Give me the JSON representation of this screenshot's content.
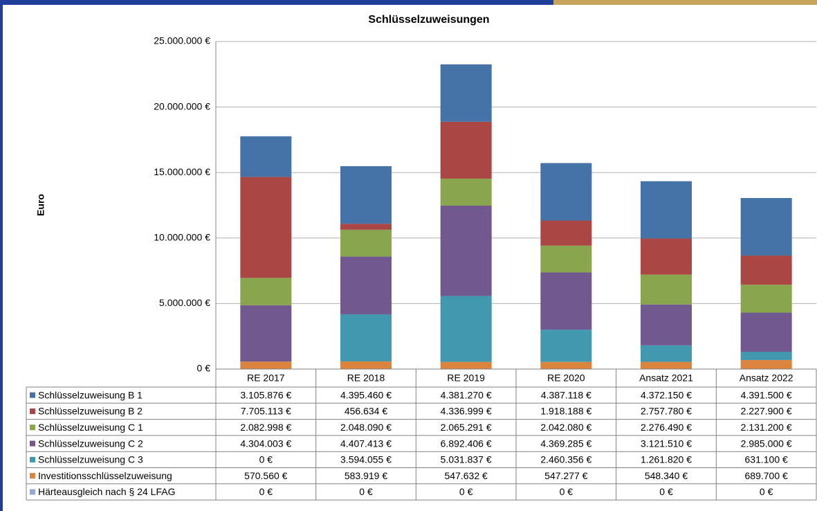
{
  "chart_data": {
    "type": "stacked-bar",
    "title": "Schlüsselzuweisungen",
    "y_label": "Euro",
    "categories": [
      "RE 2017",
      "RE 2018",
      "RE 2019",
      "RE 2020",
      "Ansatz 2021",
      "Ansatz 2022"
    ],
    "ylim": [
      0,
      25000000
    ],
    "yticks": [
      {
        "value": 0,
        "label": "0 €"
      },
      {
        "value": 5000000,
        "label": "5.000.000 €"
      },
      {
        "value": 10000000,
        "label": "10.000.000 €"
      },
      {
        "value": 15000000,
        "label": "15.000.000 €"
      },
      {
        "value": 20000000,
        "label": "20.000.000 €"
      },
      {
        "value": 25000000,
        "label": "25.000.000 €"
      }
    ],
    "grid": true,
    "series": [
      {
        "name": "Schlüsselzuweisung B 1",
        "color": "#4572a7",
        "values": [
          3105876,
          4395460,
          4381270,
          4387118,
          4372150,
          4391500
        ],
        "value_labels": [
          "3.105.876 €",
          "4.395.460 €",
          "4.381.270 €",
          "4.387.118 €",
          "4.372.150 €",
          "4.391.500 €"
        ]
      },
      {
        "name": "Schlüsselzuweisung B 2",
        "color": "#aa4643",
        "values": [
          7705113,
          456634,
          4336999,
          1918188,
          2757780,
          2227900
        ],
        "value_labels": [
          "7.705.113 €",
          "456.634 €",
          "4.336.999 €",
          "1.918.188 €",
          "2.757.780 €",
          "2.227.900 €"
        ]
      },
      {
        "name": "Schlüsselzuweisung C 1",
        "color": "#89a54e",
        "values": [
          2082998,
          2048090,
          2065291,
          2042080,
          2276490,
          2131200
        ],
        "value_labels": [
          "2.082.998 €",
          "2.048.090 €",
          "2.065.291 €",
          "2.042.080 €",
          "2.276.490 €",
          "2.131.200 €"
        ]
      },
      {
        "name": "Schlüsselzuweisung C 2",
        "color": "#71588f",
        "values": [
          4304003,
          4407413,
          6892406,
          4369285,
          3121510,
          2985000
        ],
        "value_labels": [
          "4.304.003 €",
          "4.407.413 €",
          "6.892.406 €",
          "4.369.285 €",
          "3.121.510 €",
          "2.985.000 €"
        ]
      },
      {
        "name": "Schlüsselzuweisung C 3",
        "color": "#4198af",
        "values": [
          0,
          3594055,
          5031837,
          2460356,
          1261820,
          631100
        ],
        "value_labels": [
          "0 €",
          "3.594.055 €",
          "5.031.837 €",
          "2.460.356 €",
          "1.261.820 €",
          "631.100 €"
        ]
      },
      {
        "name": "Investitionsschlüsselzuweisung",
        "color": "#db843d",
        "values": [
          570560,
          583919,
          547632,
          547277,
          548340,
          689700
        ],
        "value_labels": [
          "570.560 €",
          "583.919 €",
          "547.632 €",
          "547.277 €",
          "548.340 €",
          "689.700 €"
        ]
      },
      {
        "name": "Härteausgleich nach § 24 LFAG",
        "color": "#93a9cf",
        "values": [
          0,
          0,
          0,
          0,
          0,
          0
        ],
        "value_labels": [
          "0 €",
          "0 €",
          "0 €",
          "0 €",
          "0 €",
          "0 €"
        ]
      }
    ]
  }
}
